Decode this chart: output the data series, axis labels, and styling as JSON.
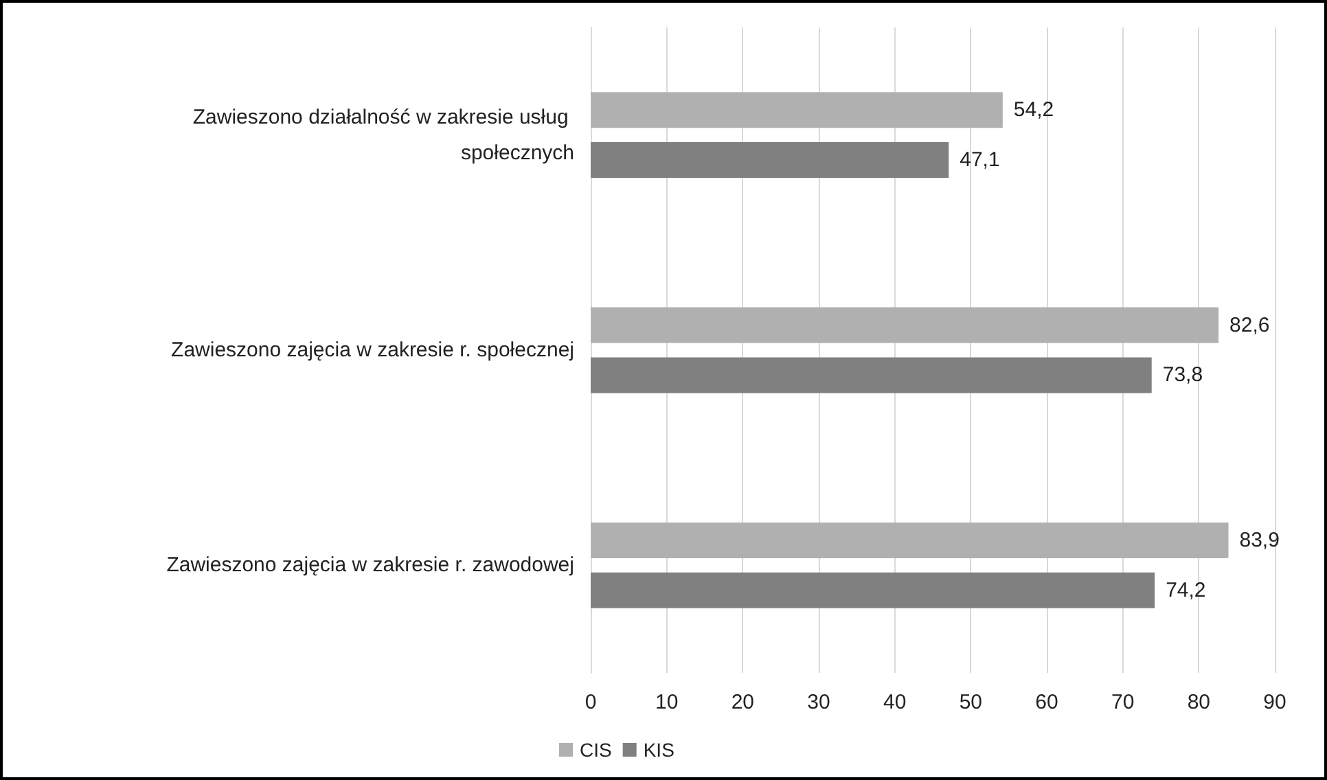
{
  "chart_data": {
    "type": "bar",
    "orientation": "horizontal",
    "categories": [
      "Zawieszono działalność w zakresie usług społecznych",
      "Zawieszono zajęcia w zakresie r. społecznej",
      "Zawieszono zajęcia w zakresie r. zawodowej"
    ],
    "series": [
      {
        "name": "CIS",
        "color": "#b0b0b0",
        "values": [
          54.2,
          82.6,
          83.9
        ],
        "value_labels": [
          "54,2",
          "82,6",
          "83,9"
        ]
      },
      {
        "name": "KIS",
        "color": "#808080",
        "values": [
          47.1,
          73.8,
          74.2
        ],
        "value_labels": [
          "47,1",
          "73,8",
          "74,2"
        ]
      }
    ],
    "xlim": [
      0,
      90
    ],
    "xticks": [
      0,
      10,
      20,
      30,
      40,
      50,
      60,
      70,
      80,
      90
    ],
    "grid": "x",
    "legend": "bottom"
  }
}
